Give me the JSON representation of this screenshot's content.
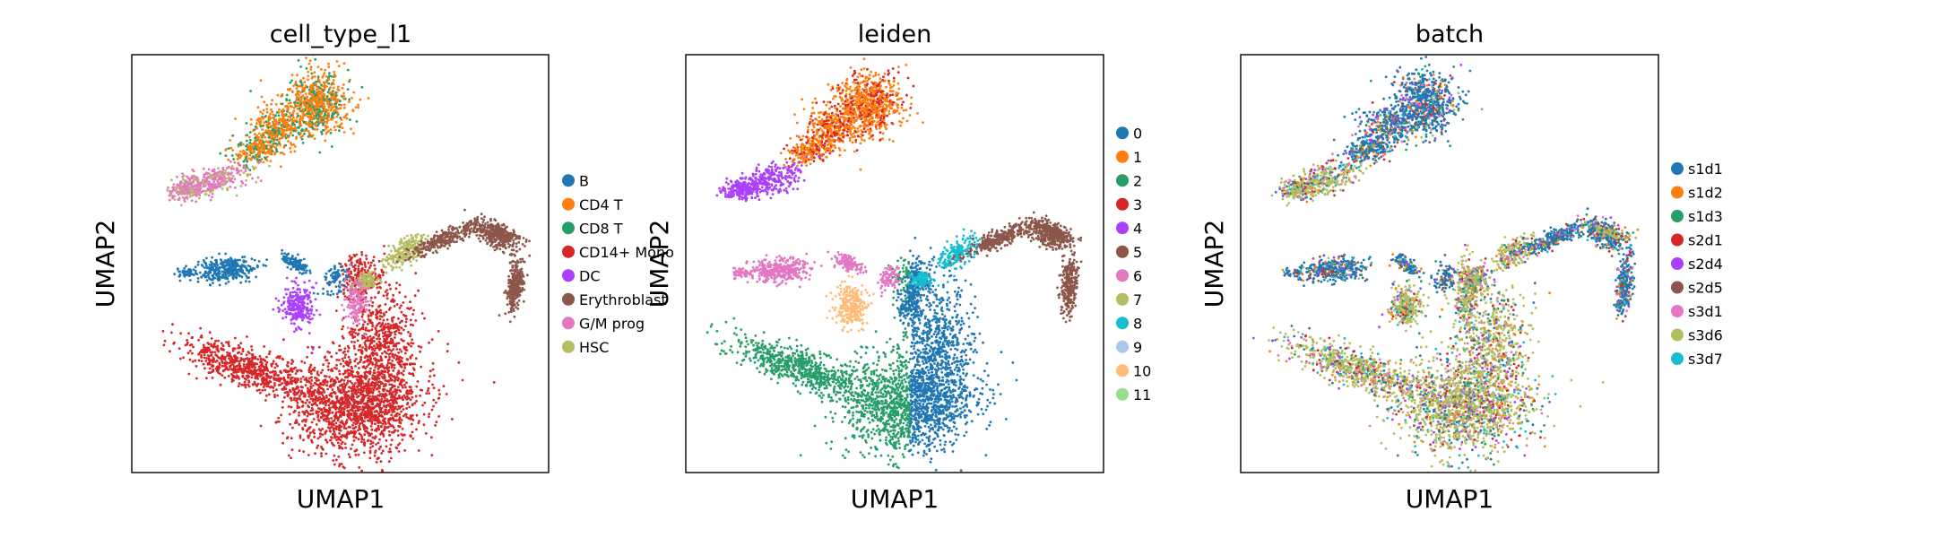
{
  "chart_data": [
    {
      "type": "scatter",
      "title": "cell_type_l1",
      "xlabel": "UMAP1",
      "ylabel": "UMAP2",
      "grid": false,
      "legend_position": "right",
      "categories": [
        "B",
        "CD4 T",
        "CD8 T",
        "CD14+ Mono",
        "DC",
        "Erythroblast",
        "G/M prog",
        "HSC"
      ],
      "colors": [
        "#1f77b4",
        "#ff7f0e",
        "#279e68",
        "#d62728",
        "#aa40fc",
        "#8c564b",
        "#e377c2",
        "#b5bd61"
      ]
    },
    {
      "type": "scatter",
      "title": "leiden",
      "xlabel": "UMAP1",
      "ylabel": "UMAP2",
      "grid": false,
      "legend_position": "right",
      "categories": [
        "0",
        "1",
        "2",
        "3",
        "4",
        "5",
        "6",
        "7",
        "8",
        "9",
        "10",
        "11"
      ],
      "colors": [
        "#1f77b4",
        "#ff7f0e",
        "#279e68",
        "#d62728",
        "#aa40fc",
        "#8c564b",
        "#e377c2",
        "#b5bd61",
        "#17becf",
        "#aec7e8",
        "#ffbb78",
        "#98df8a"
      ]
    },
    {
      "type": "scatter",
      "title": "batch",
      "xlabel": "UMAP1",
      "ylabel": "UMAP2",
      "grid": false,
      "legend_position": "right",
      "categories": [
        "s1d1",
        "s1d2",
        "s1d3",
        "s2d1",
        "s2d4",
        "s2d5",
        "s3d1",
        "s3d6",
        "s3d7"
      ],
      "colors": [
        "#1f77b4",
        "#ff7f0e",
        "#279e68",
        "#d62728",
        "#aa40fc",
        "#8c564b",
        "#e377c2",
        "#b5bd61",
        "#17becf"
      ]
    }
  ]
}
